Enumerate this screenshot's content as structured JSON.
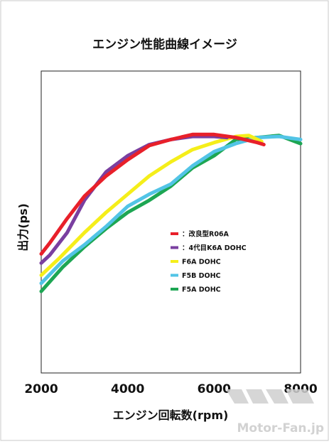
{
  "chart_data": {
    "type": "line",
    "title": "エンジン性能曲線イメージ",
    "xlabel": "エンジン回転数(rpm)",
    "ylabel": "出力(ps)",
    "xlim": [
      2000,
      8000
    ],
    "x_ticks": [
      "2000",
      "4000",
      "6000",
      "8000"
    ],
    "grid": false,
    "legend_position": "center-right",
    "series": [
      {
        "name": "：改良型R06A",
        "color": "#e8202a",
        "points": [
          [
            2000,
            0.395
          ],
          [
            2200,
            0.45
          ],
          [
            2600,
            0.57
          ],
          [
            3000,
            0.68
          ],
          [
            3500,
            0.78
          ],
          [
            4000,
            0.86
          ],
          [
            4500,
            0.93
          ],
          [
            5000,
            0.96
          ],
          [
            5500,
            0.985
          ],
          [
            6000,
            0.985
          ],
          [
            6500,
            0.97
          ],
          [
            7000,
            0.945
          ],
          [
            7150,
            0.935
          ]
        ]
      },
      {
        "name": "：4代目K6A DOHC",
        "color": "#7a3fa0",
        "points": [
          [
            2000,
            0.35
          ],
          [
            2200,
            0.39
          ],
          [
            2600,
            0.5
          ],
          [
            3000,
            0.66
          ],
          [
            3500,
            0.8
          ],
          [
            4000,
            0.88
          ],
          [
            4500,
            0.935
          ],
          [
            5000,
            0.96
          ],
          [
            5500,
            0.975
          ],
          [
            6000,
            0.975
          ],
          [
            6300,
            0.97
          ]
        ]
      },
      {
        "name": "F6A DOHC",
        "color": "#f5ee1a",
        "points": [
          [
            2000,
            0.29
          ],
          [
            2400,
            0.37
          ],
          [
            3000,
            0.5
          ],
          [
            3500,
            0.6
          ],
          [
            4000,
            0.69
          ],
          [
            4500,
            0.78
          ],
          [
            5000,
            0.85
          ],
          [
            5500,
            0.91
          ],
          [
            6000,
            0.945
          ],
          [
            6500,
            0.975
          ],
          [
            6800,
            0.98
          ],
          [
            7100,
            0.95
          ]
        ]
      },
      {
        "name": "F5B DOHC",
        "color": "#52c4e6",
        "points": [
          [
            2000,
            0.25
          ],
          [
            2500,
            0.36
          ],
          [
            3000,
            0.44
          ],
          [
            3500,
            0.53
          ],
          [
            4000,
            0.63
          ],
          [
            4500,
            0.69
          ],
          [
            5000,
            0.74
          ],
          [
            5500,
            0.83
          ],
          [
            6000,
            0.9
          ],
          [
            6500,
            0.94
          ],
          [
            7000,
            0.97
          ],
          [
            7500,
            0.975
          ],
          [
            8000,
            0.96
          ]
        ]
      },
      {
        "name": "F5A DOHC",
        "color": "#1da653",
        "points": [
          [
            2000,
            0.21
          ],
          [
            2500,
            0.33
          ],
          [
            3000,
            0.43
          ],
          [
            3500,
            0.52
          ],
          [
            4000,
            0.6
          ],
          [
            4500,
            0.66
          ],
          [
            5000,
            0.73
          ],
          [
            5500,
            0.82
          ],
          [
            6000,
            0.88
          ],
          [
            6500,
            0.96
          ],
          [
            7000,
            0.97
          ],
          [
            7500,
            0.98
          ],
          [
            8000,
            0.94
          ]
        ]
      }
    ]
  },
  "watermark": "Motor-Fan.jp"
}
